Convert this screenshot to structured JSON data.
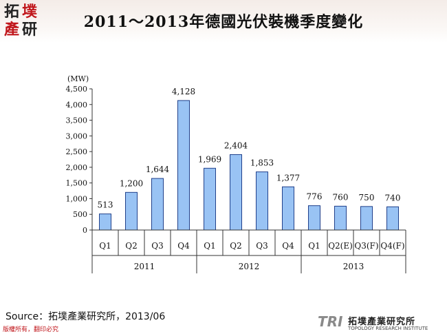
{
  "title": "2011～2013年德國光伏裝機季度變化",
  "logo": {
    "chars": [
      "拓",
      "墣",
      "產",
      "研"
    ]
  },
  "source": "Source：拓墣產業研究所，2013/06",
  "copyright": "版權所有，翻印必究",
  "brand": {
    "mark": "TRI",
    "name_zh": "拓墣產業研究所",
    "name_en": "TOPOLOGY RESEARCH INSTITUTE"
  },
  "colors": {
    "bar_fill": "#99c3f4",
    "bar_stroke": "#1f3f8a",
    "title": "#111111",
    "accent": "#c0161b"
  },
  "chart_data": {
    "type": "bar",
    "unit_label": "(MW)",
    "categories": [
      "Q1",
      "Q2",
      "Q3",
      "Q4",
      "Q1",
      "Q2",
      "Q3",
      "Q4",
      "Q1",
      "Q2(E)",
      "Q3(F)",
      "Q4(F)"
    ],
    "groups": [
      {
        "label": "2011",
        "count": 4
      },
      {
        "label": "2012",
        "count": 4
      },
      {
        "label": "2013",
        "count": 4
      }
    ],
    "values": [
      513,
      1200,
      1644,
      4128,
      1969,
      2404,
      1853,
      1377,
      776,
      760,
      750,
      740
    ],
    "value_labels": [
      "513",
      "1,200",
      "1,644",
      "4,128",
      "1,969",
      "2,404",
      "1,853",
      "1,377",
      "776",
      "760",
      "750",
      "740"
    ],
    "ylim": [
      0,
      4500
    ],
    "yticks": [
      0,
      500,
      1000,
      1500,
      2000,
      2500,
      3000,
      3500,
      4000,
      4500
    ],
    "ytick_labels": [
      "0",
      "500",
      "1,000",
      "1,500",
      "2,000",
      "2,500",
      "3,000",
      "3,500",
      "4,000",
      "4,500"
    ],
    "grid": false,
    "legend": "none"
  }
}
